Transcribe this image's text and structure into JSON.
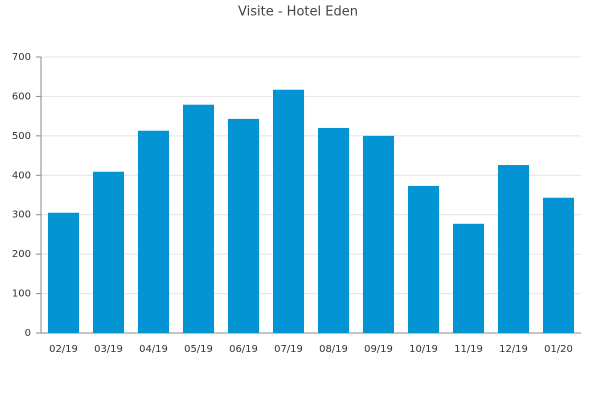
{
  "chart_data": {
    "type": "bar",
    "title": "Visite - Hotel Eden",
    "categories": [
      "02/19",
      "03/19",
      "04/19",
      "05/19",
      "06/19",
      "07/19",
      "08/19",
      "09/19",
      "10/19",
      "11/19",
      "12/19",
      "01/20"
    ],
    "values": [
      305,
      409,
      513,
      579,
      543,
      617,
      520,
      500,
      373,
      277,
      426,
      343
    ],
    "color": "#0394d3",
    "ylim": [
      0,
      700
    ],
    "yticks": [
      0,
      100,
      200,
      300,
      400,
      500,
      600,
      700
    ],
    "grid": true
  }
}
